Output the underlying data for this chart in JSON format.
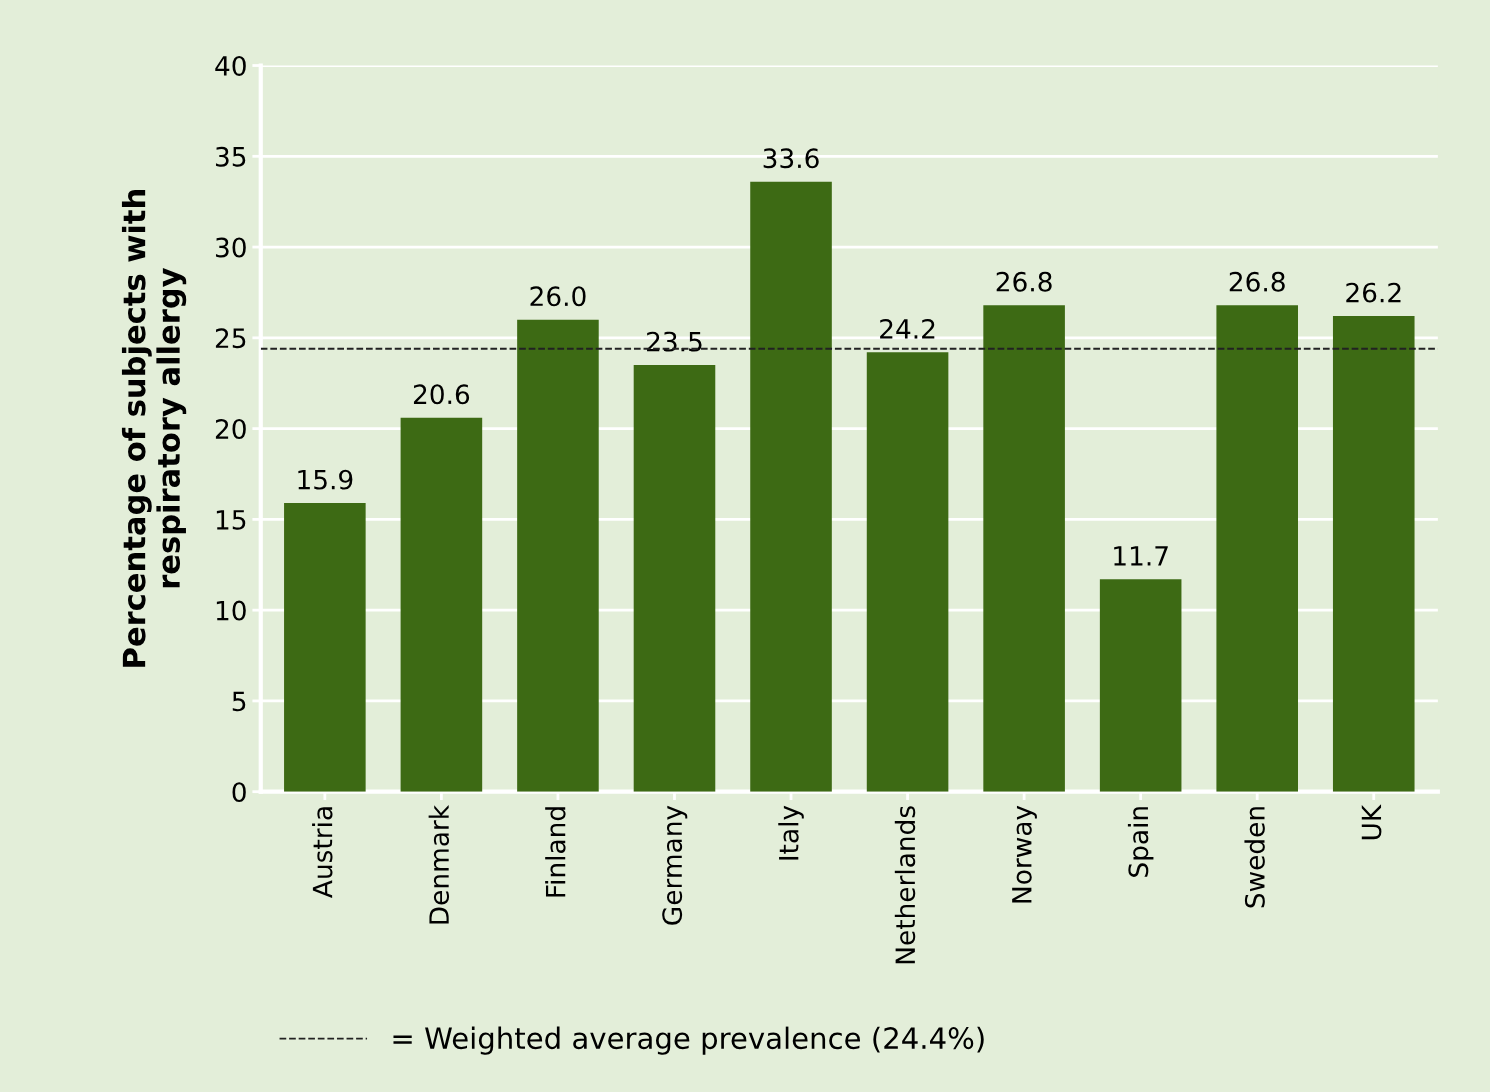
{
  "chart_data": {
    "type": "bar",
    "ylabel": "Percentage of subjects with\nrespiratory allergy",
    "categories": [
      "Austria",
      "Denmark",
      "Finland",
      "Germany",
      "Italy",
      "Netherlands",
      "Norway",
      "Spain",
      "Sweden",
      "UK"
    ],
    "values": [
      15.9,
      20.6,
      26.0,
      23.5,
      33.6,
      24.2,
      26.8,
      11.7,
      26.8,
      26.2
    ],
    "value_labels": [
      "15.9",
      "20.6",
      "26.0",
      "23.5",
      "33.6",
      "24.2",
      "26.8",
      "11.7",
      "26.8",
      "26.2"
    ],
    "color": "#3d6a14",
    "ylim": [
      0,
      40
    ],
    "yticks": [
      0,
      5,
      10,
      15,
      20,
      25,
      30,
      35,
      40
    ],
    "grid": "y",
    "ref_lines": [
      {
        "axis": "y",
        "value": 24.4,
        "label": "= Weighted average prevalence (24.4%)",
        "color": "#222222",
        "line_style": "dashed"
      }
    ],
    "legend": "bottom"
  }
}
